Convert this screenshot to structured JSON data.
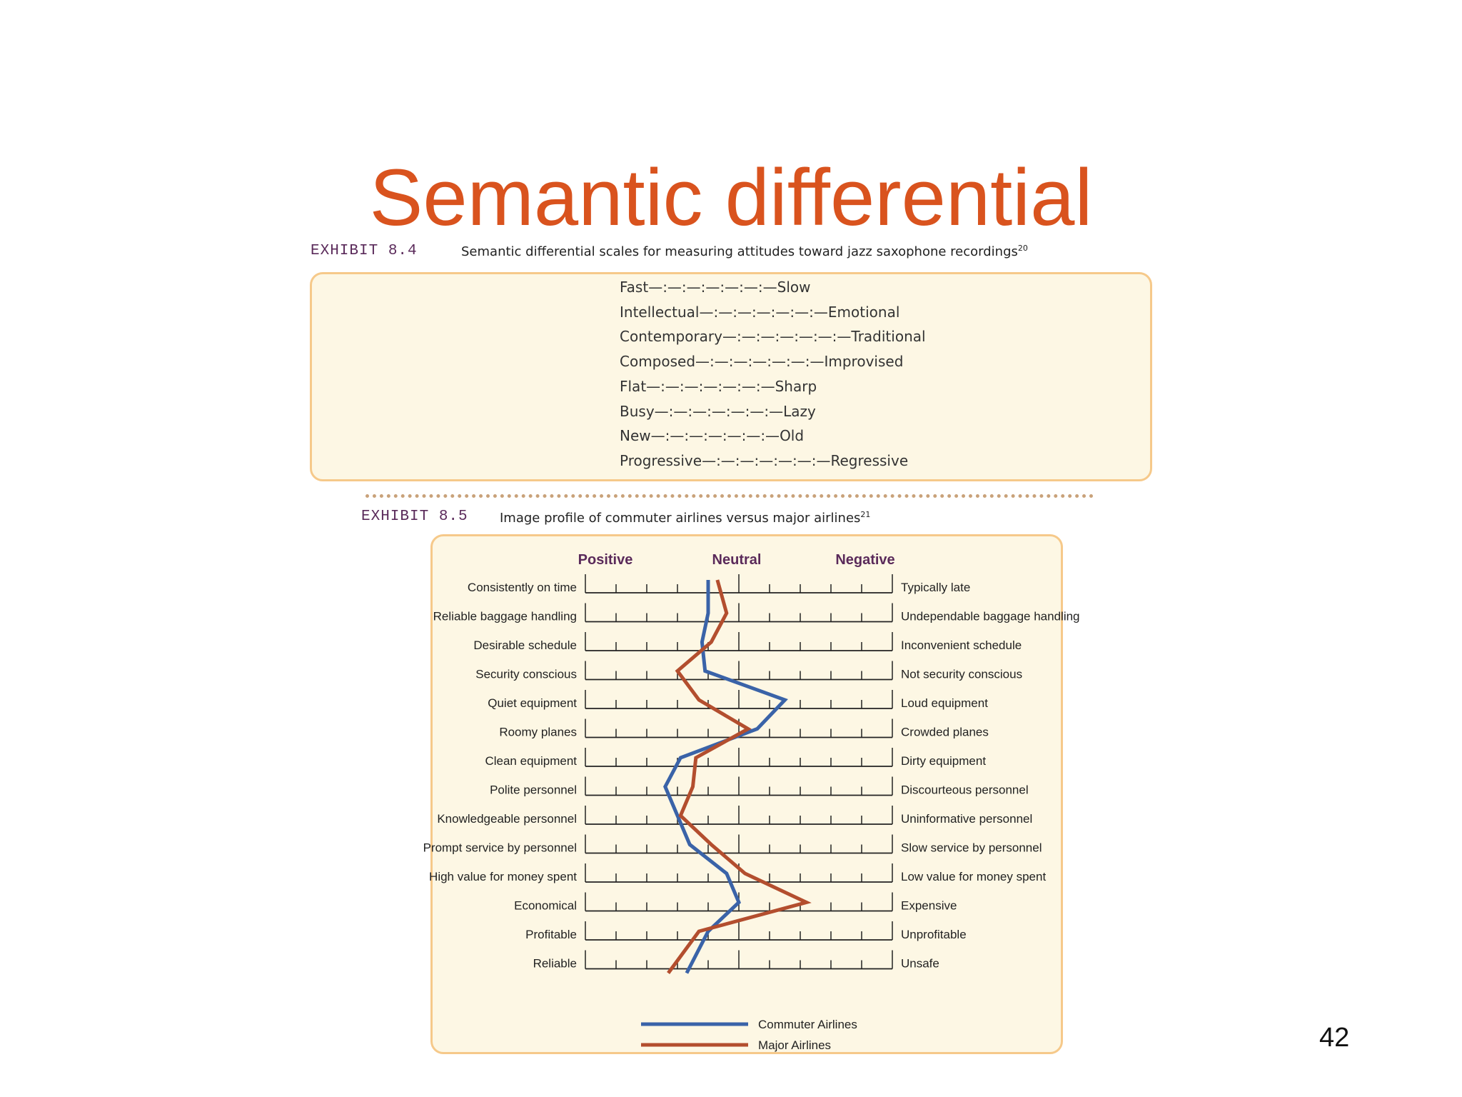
{
  "slide": {
    "title": "Semantic differential",
    "page_number": "42"
  },
  "exhibit_84": {
    "label": "EXHIBIT 8.4",
    "caption": "Semantic differential scales for measuring attitudes toward jazz saxophone recordings",
    "footnote": "20",
    "scales": [
      {
        "left": "Fast",
        "right": "Slow"
      },
      {
        "left": "Intellectual",
        "right": "Emotional"
      },
      {
        "left": "Contemporary",
        "right": "Traditional"
      },
      {
        "left": "Composed",
        "right": "Improvised"
      },
      {
        "left": "Flat",
        "right": "Sharp"
      },
      {
        "left": "Busy",
        "right": "Lazy"
      },
      {
        "left": "New",
        "right": "Old"
      },
      {
        "left": "Progressive",
        "right": "Regressive"
      }
    ],
    "scale_separator": "—:—:—:—:—:—:—"
  },
  "exhibit_85": {
    "label": "EXHIBIT 8.5",
    "caption": "Image profile of commuter airlines versus major airlines",
    "footnote": "21"
  },
  "chart_data": {
    "type": "line",
    "scale_headers": [
      "Positive",
      "Neutral",
      "Negative"
    ],
    "scale_points": 11,
    "categories": [
      {
        "left": "Consistently on time",
        "right": "Typically late"
      },
      {
        "left": "Reliable baggage handling",
        "right": "Undependable baggage handling"
      },
      {
        "left": "Desirable schedule",
        "right": "Inconvenient schedule"
      },
      {
        "left": "Security conscious",
        "right": "Not security conscious"
      },
      {
        "left": "Quiet equipment",
        "right": "Loud equipment"
      },
      {
        "left": "Roomy planes",
        "right": "Crowded planes"
      },
      {
        "left": "Clean equipment",
        "right": "Dirty equipment"
      },
      {
        "left": "Polite personnel",
        "right": "Discourteous personnel"
      },
      {
        "left": "Knowledgeable personnel",
        "right": "Uninformative personnel"
      },
      {
        "left": "Prompt service by personnel",
        "right": "Slow service by personnel"
      },
      {
        "left": "High value for money spent",
        "right": "Low value for money spent"
      },
      {
        "left": "Economical",
        "right": "Expensive"
      },
      {
        "left": "Profitable",
        "right": "Unprofitable"
      },
      {
        "left": "Reliable",
        "right": "Unsafe"
      }
    ],
    "series": [
      {
        "name": "Commuter Airlines",
        "color": "#3a63a8",
        "values": [
          5.0,
          5.0,
          4.8,
          4.9,
          7.5,
          6.6,
          4.1,
          3.6,
          4.0,
          4.4,
          5.6,
          6.0,
          5.0,
          4.3
        ]
      },
      {
        "name": "Major Airlines",
        "color": "#b34e2e",
        "values": [
          5.3,
          5.6,
          5.1,
          4.0,
          4.7,
          6.3,
          4.6,
          4.5,
          4.1,
          5.1,
          6.2,
          8.2,
          4.7,
          3.7
        ]
      }
    ],
    "ylim": [
      1,
      11
    ],
    "legend": "bottom-center"
  }
}
